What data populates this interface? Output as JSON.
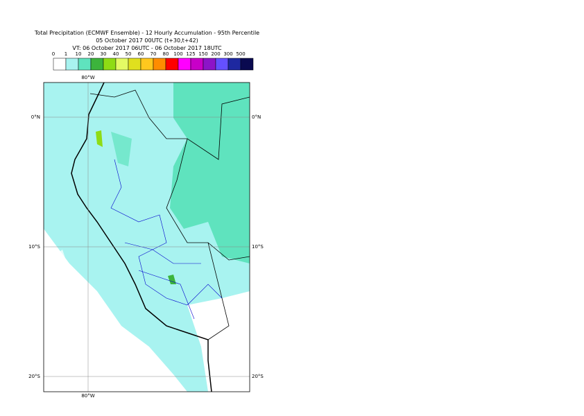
{
  "header": {
    "title": "Total Precipitation (ECMWF Ensemble) - 12 Hourly Accumulation - 95th Percentile",
    "run": "05 October 2017 00UTC (t+30,t+42)",
    "valid": "VT: 06 October 2017 06UTC - 06 October 2017 18UTC"
  },
  "legend": {
    "labels": [
      "0",
      "1",
      "10",
      "20",
      "30",
      "40",
      "50",
      "60",
      "70",
      "80",
      "100",
      "125",
      "150",
      "200",
      "300",
      "500"
    ],
    "colors": [
      "#ffffff",
      "#a8f3f0",
      "#5fe3be",
      "#3cb43c",
      "#8fdc14",
      "#e4fa64",
      "#e0e01e",
      "#ffc81e",
      "#ff8c00",
      "#ff0000",
      "#ff00ff",
      "#c800c8",
      "#8c14c8",
      "#6450ff",
      "#1e28a0",
      "#0a0a50"
    ]
  },
  "map": {
    "lon_labels": [
      "80°W",
      "80°W"
    ],
    "lat_labels": {
      "left": [
        "0°N",
        "10°S",
        "20°S"
      ],
      "right": [
        "0°N",
        "10°S",
        "20°S"
      ]
    }
  }
}
